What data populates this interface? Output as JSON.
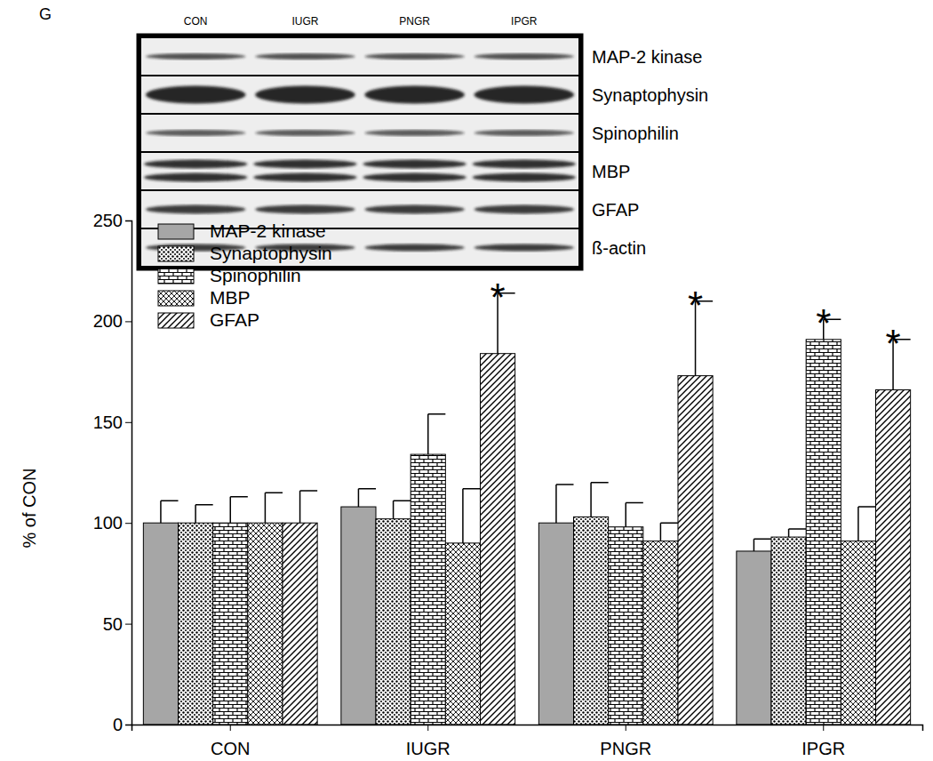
{
  "panel_label": "G",
  "blot": {
    "lanes": [
      "CON",
      "IUGR",
      "PNGR",
      "IPGR"
    ],
    "rows": [
      "MAP-2 kinase",
      "Synaptophysin",
      "Spinophilin",
      "MBP",
      "GFAP",
      "ß-actin"
    ]
  },
  "chart_data": {
    "type": "bar",
    "y_label": "% of CON",
    "categories": [
      "CON",
      "IUGR",
      "PNGR",
      "IPGR"
    ],
    "series": [
      {
        "name": "MAP-2 kinase",
        "color": "#a6a6a6",
        "values": [
          100,
          108,
          100,
          86
        ],
        "errors": [
          11,
          9,
          19,
          6
        ]
      },
      {
        "name": "Synaptophysin",
        "color": "#000000",
        "values": [
          100,
          102,
          103,
          93
        ],
        "errors": [
          9,
          9,
          17,
          4
        ]
      },
      {
        "name": "Spinophilin",
        "color": "#000000",
        "values": [
          100,
          134,
          98,
          191
        ],
        "errors": [
          13,
          20,
          12,
          10
        ]
      },
      {
        "name": "MBP",
        "color": "#000000",
        "values": [
          100,
          90,
          91,
          91
        ],
        "errors": [
          15,
          27,
          9,
          17
        ]
      },
      {
        "name": "GFAP",
        "color": "#000000",
        "values": [
          100,
          184,
          173,
          166
        ],
        "errors": [
          16,
          30,
          37,
          25
        ]
      }
    ],
    "annotations": [
      {
        "text": "*",
        "category": 1,
        "series": 4
      },
      {
        "text": "*",
        "category": 2,
        "series": 4
      },
      {
        "text": "*",
        "category": 3,
        "series": 2
      },
      {
        "text": "*",
        "category": 3,
        "series": 4
      }
    ],
    "ylim": [
      0,
      250
    ],
    "yticks": [
      0,
      50,
      100,
      150,
      200,
      250
    ],
    "grid": false,
    "legend": "upper left"
  }
}
